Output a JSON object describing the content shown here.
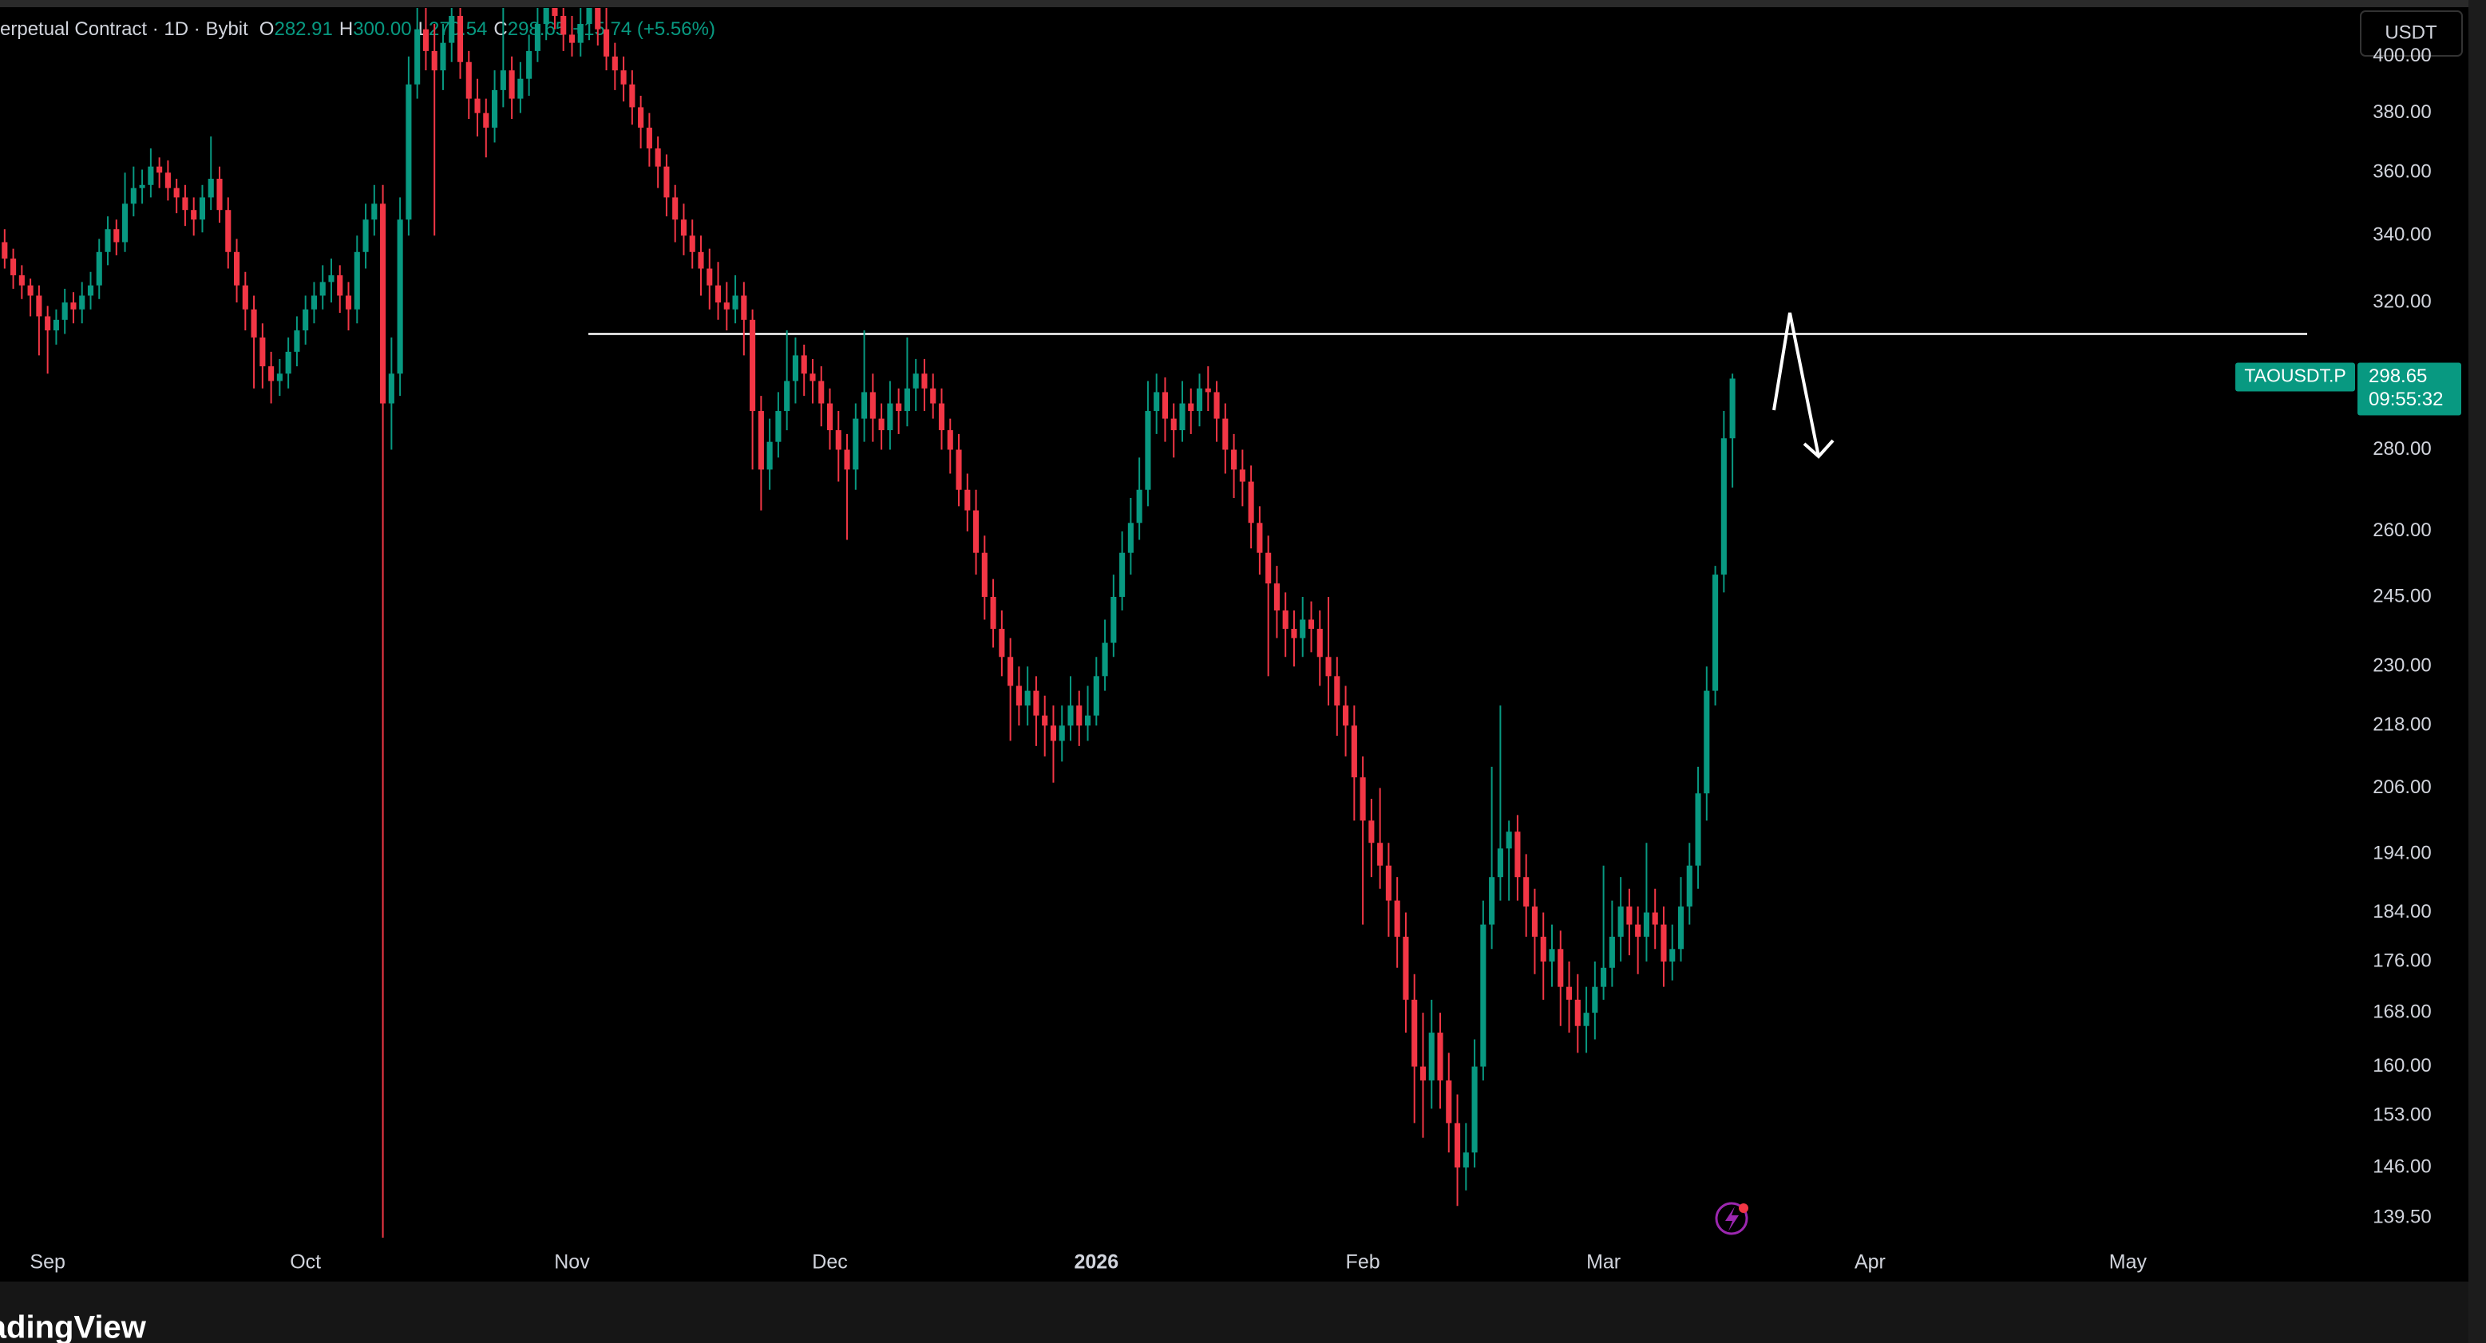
{
  "chart_data": {
    "type": "candlestick",
    "legend": {
      "symbol": "erpetual Contract · 1D · Bybit",
      "items": [
        {
          "key": "O",
          "value": "282.91"
        },
        {
          "key": "H",
          "value": "300.00"
        },
        {
          "key": "L",
          "value": "270.54"
        },
        {
          "key": "C",
          "value": "298.65"
        }
      ],
      "change": "+15.74 (+5.56%)"
    },
    "currency": "USDT",
    "price_label": {
      "symbol": "TAOUSDT.P",
      "price": "298.65",
      "countdown": "09:55:32"
    },
    "watermark": "TradingView",
    "up_color": "#089981",
    "down_color": "#f23645",
    "log_scale": true,
    "level": 311,
    "xlim": [
      -0.54,
      272.5
    ],
    "xticks": [
      {
        "value": 5,
        "label": "Sep"
      },
      {
        "value": 35,
        "label": "Oct"
      },
      {
        "value": 66,
        "label": "Nov"
      },
      {
        "value": 96,
        "label": "Dec"
      },
      {
        "value": 127,
        "label": "2026"
      },
      {
        "value": 158,
        "label": "Feb"
      },
      {
        "value": 186,
        "label": "Mar"
      },
      {
        "value": 217,
        "label": "Apr"
      },
      {
        "value": 247,
        "label": "May"
      }
    ],
    "ylim": [
      136.6,
      418
    ],
    "yticks": [
      {
        "value": 139.5,
        "label": "139.50"
      },
      {
        "value": 146,
        "label": "146.00"
      },
      {
        "value": 153,
        "label": "153.00"
      },
      {
        "value": 160,
        "label": "160.00"
      },
      {
        "value": 168,
        "label": "168.00"
      },
      {
        "value": 176,
        "label": "176.00"
      },
      {
        "value": 184,
        "label": "184.00"
      },
      {
        "value": 194,
        "label": "194.00"
      },
      {
        "value": 206,
        "label": "206.00"
      },
      {
        "value": 218,
        "label": "218.00"
      },
      {
        "value": 230,
        "label": "230.00"
      },
      {
        "value": 245,
        "label": "245.00"
      },
      {
        "value": 260,
        "label": "260.00"
      },
      {
        "value": 280,
        "label": "280.00"
      },
      {
        "value": 320,
        "label": "320.00"
      },
      {
        "value": 340,
        "label": "340.00"
      },
      {
        "value": 360,
        "label": "360.00"
      },
      {
        "value": 380,
        "label": "380.00"
      },
      {
        "value": 400,
        "label": "400.00"
      }
    ],
    "candles": [
      [
        338,
        342,
        330,
        333
      ],
      [
        333,
        336,
        324,
        328
      ],
      [
        328,
        331,
        321,
        325
      ],
      [
        325,
        327,
        316,
        322
      ],
      [
        322,
        325,
        305,
        316
      ],
      [
        316,
        319,
        300,
        312
      ],
      [
        312,
        318,
        308,
        315
      ],
      [
        315,
        324,
        311,
        320
      ],
      [
        320,
        323,
        314,
        318
      ],
      [
        318,
        326,
        314,
        322
      ],
      [
        322,
        329,
        318,
        325
      ],
      [
        325,
        339,
        321,
        335
      ],
      [
        335,
        346,
        331,
        342
      ],
      [
        342,
        345,
        334,
        338
      ],
      [
        338,
        360,
        335,
        350
      ],
      [
        350,
        362,
        346,
        355
      ],
      [
        355,
        361,
        350,
        356
      ],
      [
        356,
        368,
        352,
        362
      ],
      [
        362,
        365,
        355,
        360
      ],
      [
        360,
        364,
        351,
        355
      ],
      [
        355,
        358,
        347,
        352
      ],
      [
        352,
        356,
        343,
        348
      ],
      [
        348,
        352,
        340,
        345
      ],
      [
        345,
        356,
        341,
        352
      ],
      [
        352,
        372,
        348,
        358
      ],
      [
        358,
        362,
        344,
        348
      ],
      [
        348,
        352,
        330,
        335
      ],
      [
        335,
        339,
        320,
        325
      ],
      [
        325,
        329,
        312,
        318
      ],
      [
        318,
        322,
        296,
        310
      ],
      [
        310,
        314,
        296,
        302
      ],
      [
        302,
        306,
        292,
        298
      ],
      [
        298,
        304,
        294,
        300
      ],
      [
        300,
        310,
        296,
        306
      ],
      [
        306,
        316,
        302,
        312
      ],
      [
        312,
        322,
        308,
        318
      ],
      [
        318,
        326,
        314,
        322
      ],
      [
        322,
        331,
        318,
        326
      ],
      [
        326,
        333,
        320,
        328
      ],
      [
        328,
        331,
        317,
        322
      ],
      [
        322,
        326,
        312,
        318
      ],
      [
        318,
        340,
        314,
        335
      ],
      [
        335,
        350,
        330,
        345
      ],
      [
        345,
        356,
        340,
        350
      ],
      [
        350,
        356,
        137,
        292
      ],
      [
        292,
        310,
        280,
        300
      ],
      [
        300,
        352,
        294,
        345
      ],
      [
        345,
        400,
        340,
        390
      ],
      [
        390,
        440,
        385,
        410
      ],
      [
        410,
        425,
        395,
        402
      ],
      [
        402,
        412,
        340,
        395
      ],
      [
        395,
        412,
        388,
        405
      ],
      [
        405,
        430,
        398,
        415
      ],
      [
        415,
        420,
        392,
        398
      ],
      [
        398,
        402,
        378,
        385
      ],
      [
        385,
        392,
        372,
        380
      ],
      [
        380,
        385,
        365,
        375
      ],
      [
        375,
        395,
        370,
        388
      ],
      [
        388,
        430,
        382,
        395
      ],
      [
        395,
        400,
        378,
        385
      ],
      [
        385,
        398,
        380,
        392
      ],
      [
        392,
        408,
        386,
        402
      ],
      [
        402,
        425,
        398,
        412
      ],
      [
        412,
        430,
        406,
        420
      ],
      [
        420,
        426,
        410,
        415
      ],
      [
        415,
        420,
        402,
        408
      ],
      [
        408,
        415,
        400,
        405
      ],
      [
        405,
        420,
        400,
        412
      ],
      [
        412,
        430,
        406,
        420
      ],
      [
        420,
        424,
        404,
        410
      ],
      [
        410,
        418,
        395,
        400
      ],
      [
        400,
        405,
        388,
        395
      ],
      [
        395,
        400,
        384,
        390
      ],
      [
        390,
        395,
        376,
        382
      ],
      [
        382,
        386,
        368,
        375
      ],
      [
        375,
        380,
        362,
        368
      ],
      [
        368,
        372,
        355,
        362
      ],
      [
        362,
        366,
        346,
        352
      ],
      [
        352,
        356,
        338,
        345
      ],
      [
        345,
        350,
        334,
        340
      ],
      [
        340,
        345,
        330,
        335
      ],
      [
        335,
        340,
        322,
        330
      ],
      [
        330,
        336,
        318,
        325
      ],
      [
        325,
        332,
        315,
        320
      ],
      [
        320,
        326,
        312,
        318
      ],
      [
        318,
        328,
        314,
        322
      ],
      [
        322,
        326,
        305,
        315
      ],
      [
        315,
        318,
        275,
        290
      ],
      [
        290,
        294,
        265,
        275
      ],
      [
        275,
        288,
        270,
        282
      ],
      [
        282,
        295,
        278,
        290
      ],
      [
        290,
        312,
        285,
        298
      ],
      [
        298,
        310,
        292,
        305
      ],
      [
        305,
        308,
        294,
        300
      ],
      [
        300,
        304,
        292,
        298
      ],
      [
        298,
        302,
        286,
        292
      ],
      [
        292,
        296,
        280,
        285
      ],
      [
        285,
        290,
        272,
        280
      ],
      [
        280,
        284,
        258,
        275
      ],
      [
        275,
        292,
        270,
        288
      ],
      [
        288,
        312,
        282,
        295
      ],
      [
        295,
        300,
        282,
        288
      ],
      [
        288,
        292,
        280,
        285
      ],
      [
        285,
        298,
        280,
        292
      ],
      [
        292,
        296,
        284,
        290
      ],
      [
        290,
        310,
        286,
        296
      ],
      [
        296,
        304,
        290,
        300
      ],
      [
        300,
        304,
        290,
        296
      ],
      [
        296,
        300,
        288,
        292
      ],
      [
        292,
        296,
        280,
        285
      ],
      [
        285,
        288,
        274,
        280
      ],
      [
        280,
        284,
        266,
        270
      ],
      [
        270,
        274,
        260,
        265
      ],
      [
        265,
        270,
        250,
        255
      ],
      [
        255,
        259,
        240,
        245
      ],
      [
        245,
        249,
        234,
        238
      ],
      [
        238,
        242,
        228,
        232
      ],
      [
        232,
        236,
        215,
        226
      ],
      [
        226,
        230,
        218,
        222
      ],
      [
        222,
        230,
        218,
        225
      ],
      [
        225,
        228,
        214,
        220
      ],
      [
        220,
        224,
        212,
        218
      ],
      [
        218,
        222,
        207,
        215
      ],
      [
        215,
        222,
        211,
        218
      ],
      [
        218,
        228,
        215,
        222
      ],
      [
        222,
        225,
        214,
        218
      ],
      [
        218,
        226,
        215,
        220
      ],
      [
        220,
        232,
        218,
        228
      ],
      [
        228,
        240,
        225,
        235
      ],
      [
        235,
        250,
        232,
        245
      ],
      [
        245,
        260,
        242,
        255
      ],
      [
        255,
        268,
        250,
        262
      ],
      [
        262,
        278,
        258,
        270
      ],
      [
        270,
        298,
        266,
        290
      ],
      [
        290,
        300,
        284,
        295
      ],
      [
        295,
        299,
        282,
        288
      ],
      [
        288,
        292,
        278,
        285
      ],
      [
        285,
        298,
        282,
        292
      ],
      [
        292,
        296,
        284,
        290
      ],
      [
        290,
        300,
        286,
        296
      ],
      [
        296,
        302,
        290,
        295
      ],
      [
        295,
        298,
        282,
        288
      ],
      [
        288,
        292,
        274,
        280
      ],
      [
        280,
        284,
        268,
        275
      ],
      [
        275,
        280,
        266,
        272
      ],
      [
        272,
        276,
        256,
        262
      ],
      [
        262,
        266,
        250,
        255
      ],
      [
        255,
        259,
        228,
        248
      ],
      [
        248,
        252,
        236,
        242
      ],
      [
        242,
        246,
        232,
        238
      ],
      [
        238,
        242,
        230,
        236
      ],
      [
        236,
        245,
        232,
        240
      ],
      [
        240,
        244,
        233,
        238
      ],
      [
        238,
        242,
        226,
        232
      ],
      [
        232,
        245,
        222,
        228
      ],
      [
        228,
        232,
        216,
        222
      ],
      [
        222,
        226,
        212,
        218
      ],
      [
        218,
        222,
        200,
        208
      ],
      [
        208,
        212,
        182,
        200
      ],
      [
        200,
        204,
        190,
        196
      ],
      [
        196,
        206,
        188,
        192
      ],
      [
        192,
        196,
        180,
        186
      ],
      [
        186,
        190,
        175,
        180
      ],
      [
        180,
        184,
        165,
        170
      ],
      [
        170,
        174,
        152,
        160
      ],
      [
        160,
        168,
        150,
        158
      ],
      [
        158,
        170,
        154,
        165
      ],
      [
        165,
        168,
        154,
        158
      ],
      [
        158,
        162,
        148,
        152
      ],
      [
        152,
        156,
        141,
        146
      ],
      [
        146,
        152,
        143,
        148
      ],
      [
        148,
        164,
        146,
        160
      ],
      [
        160,
        186,
        158,
        182
      ],
      [
        182,
        210,
        178,
        190
      ],
      [
        190,
        222,
        186,
        195
      ],
      [
        195,
        200,
        186,
        198
      ],
      [
        198,
        201,
        186,
        190
      ],
      [
        190,
        194,
        180,
        185
      ],
      [
        185,
        188,
        174,
        180
      ],
      [
        180,
        184,
        170,
        176
      ],
      [
        176,
        182,
        172,
        178
      ],
      [
        178,
        181,
        166,
        172
      ],
      [
        172,
        176,
        165,
        170
      ],
      [
        170,
        174,
        162,
        166
      ],
      [
        166,
        172,
        162,
        168
      ],
      [
        168,
        176,
        164,
        172
      ],
      [
        172,
        192,
        170,
        175
      ],
      [
        175,
        186,
        172,
        180
      ],
      [
        180,
        190,
        176,
        185
      ],
      [
        185,
        188,
        177,
        182
      ],
      [
        182,
        185,
        174,
        180
      ],
      [
        180,
        196,
        176,
        184
      ],
      [
        184,
        188,
        178,
        182
      ],
      [
        182,
        185,
        172,
        176
      ],
      [
        176,
        182,
        173,
        178
      ],
      [
        178,
        190,
        176,
        185
      ],
      [
        185,
        196,
        182,
        192
      ],
      [
        192,
        210,
        188,
        205
      ],
      [
        205,
        230,
        200,
        225
      ],
      [
        225,
        252,
        222,
        250
      ],
      [
        250,
        290,
        246,
        282.91
      ],
      [
        282.91,
        300,
        270.54,
        298.65
      ]
    ]
  }
}
